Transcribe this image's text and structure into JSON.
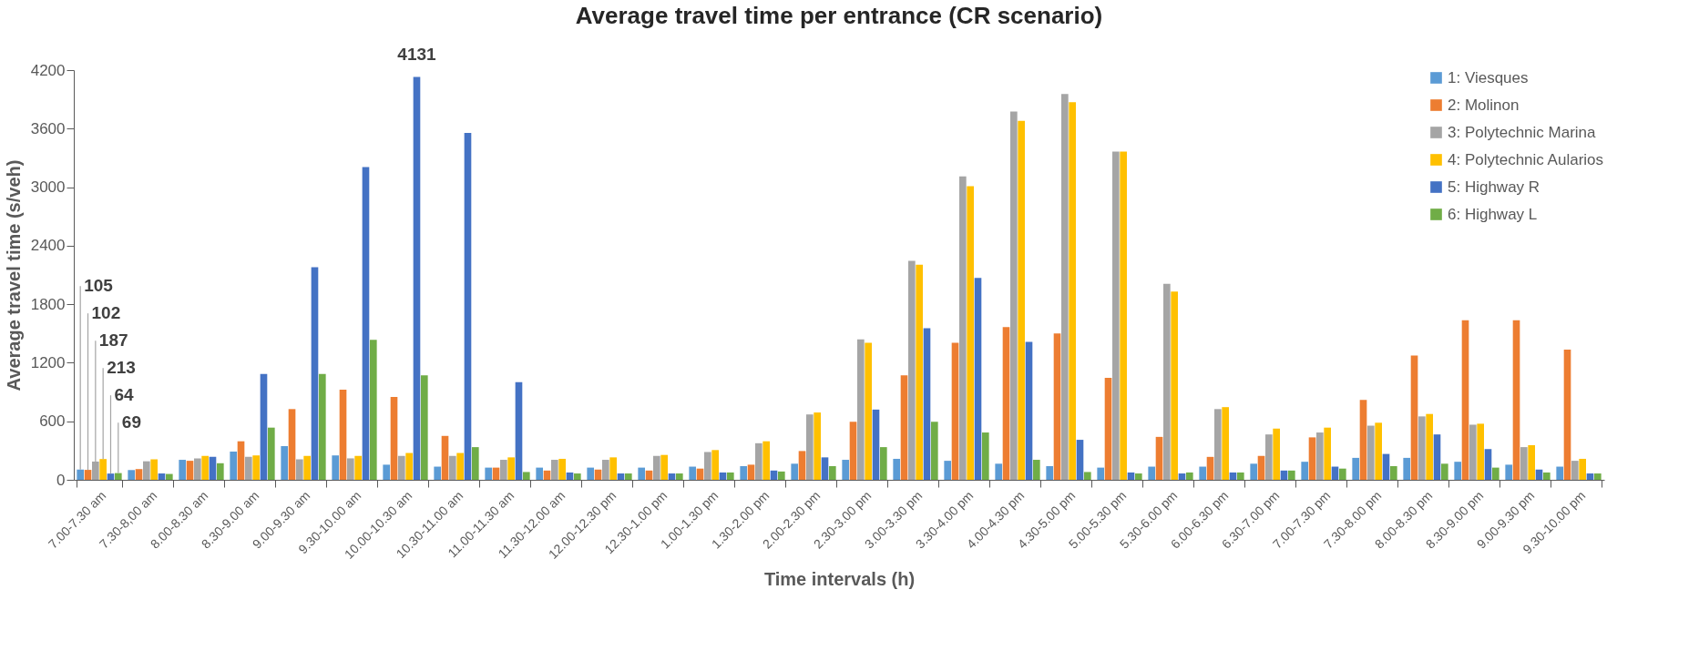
{
  "chart_data": {
    "type": "bar",
    "title": "Average travel time per entrance (CR scenario)",
    "xlabel": "Time intervals (h)",
    "ylabel": "Average travel time (s/veh)",
    "categories": [
      "7.00-7.30 am",
      "7.30-8,00 am",
      "8.00-8.30 am",
      "8.30-9.00 am",
      "9.00-9.30 am",
      "9.30-10.00 am",
      "10.00-10.30 am",
      "10.30-11.00 am",
      "11.00-11.30 am",
      "11.30-12.00 am",
      "12.00-12.30 pm",
      "12.30-1.00 pm",
      "1.00-1.30 pm",
      "1.30-2.00 pm",
      "2.00-2.30 pm",
      "2.30-3.00 pm",
      "3.00-3.30 pm",
      "3.30-4.00 pm",
      "4.00-4.30 pm",
      "4.30-5.00 pm",
      "5.00-5.30 pm",
      "5.30-6.00 pm",
      "6.00-6.30 pm",
      "6.30-7.00 pm",
      "7.00-7.30 pm",
      "7.30-8.00 pm",
      "8.00-8.30 pm",
      "8.30-9.00 pm",
      "9.00-9.30 pm",
      "9.30-10.00 pm"
    ],
    "ylim": [
      0,
      4200
    ],
    "yticks": [
      0,
      600,
      1200,
      1800,
      2400,
      3000,
      3600,
      4200
    ],
    "legend": "top right",
    "series": [
      {
        "name": "1: Viesques",
        "color": "#5b9bd5",
        "values": [
          105,
          100,
          205,
          290,
          345,
          250,
          155,
          135,
          125,
          125,
          125,
          125,
          135,
          140,
          165,
          205,
          215,
          195,
          165,
          140,
          125,
          135,
          135,
          165,
          185,
          225,
          225,
          185,
          155,
          135
        ],
        "value_labels": [
          "105",
          null,
          null,
          null,
          null,
          null,
          null,
          null,
          null,
          null,
          null,
          null,
          null,
          null,
          null,
          null,
          null,
          null,
          null,
          null,
          null,
          null,
          null,
          null,
          null,
          null,
          null,
          null,
          null,
          null
        ]
      },
      {
        "name": "2: Molinon",
        "color": "#ed7d31",
        "values": [
          102,
          110,
          195,
          395,
          725,
          925,
          850,
          450,
          125,
          95,
          105,
          95,
          115,
          155,
          295,
          595,
          1070,
          1405,
          1565,
          1500,
          1045,
          440,
          235,
          245,
          435,
          820,
          1275,
          1635,
          1635,
          1335
        ],
        "value_labels": [
          "102",
          null,
          null,
          null,
          null,
          null,
          null,
          null,
          null,
          null,
          null,
          null,
          null,
          null,
          null,
          null,
          null,
          null,
          null,
          null,
          null,
          null,
          null,
          null,
          null,
          null,
          null,
          null,
          null,
          null
        ]
      },
      {
        "name": "3: Polytechnic Marina",
        "color": "#a5a5a5",
        "values": [
          187,
          190,
          220,
          235,
          210,
          220,
          245,
          245,
          205,
          205,
          205,
          245,
          285,
          375,
          670,
          1440,
          2245,
          3110,
          3775,
          3955,
          3365,
          2010,
          725,
          465,
          485,
          555,
          650,
          565,
          335,
          195
        ],
        "value_labels": [
          "187",
          null,
          null,
          null,
          null,
          null,
          null,
          null,
          null,
          null,
          null,
          null,
          null,
          null,
          null,
          null,
          null,
          null,
          null,
          null,
          null,
          null,
          null,
          null,
          null,
          null,
          null,
          null,
          null,
          null
        ]
      },
      {
        "name": "4: Polytechnic Aularios",
        "color": "#ffc000",
        "values": [
          213,
          210,
          245,
          250,
          245,
          245,
          275,
          275,
          230,
          215,
          230,
          255,
          305,
          395,
          690,
          1405,
          2205,
          3010,
          3680,
          3870,
          3365,
          1930,
          745,
          525,
          535,
          585,
          675,
          575,
          355,
          215
        ],
        "value_labels": [
          "213",
          null,
          null,
          null,
          null,
          null,
          null,
          null,
          null,
          null,
          null,
          null,
          null,
          null,
          null,
          null,
          null,
          null,
          null,
          null,
          null,
          null,
          null,
          null,
          null,
          null,
          null,
          null,
          null,
          null
        ]
      },
      {
        "name": "5: Highway R",
        "color": "#4472c4",
        "values": [
          64,
          65,
          235,
          1085,
          2180,
          3205,
          4131,
          3555,
          1000,
          75,
          65,
          65,
          75,
          95,
          230,
          720,
          1555,
          2070,
          1415,
          410,
          75,
          65,
          75,
          95,
          135,
          265,
          465,
          315,
          105,
          65
        ],
        "value_labels": [
          "64",
          null,
          null,
          null,
          null,
          null,
          "4131",
          null,
          null,
          null,
          null,
          null,
          null,
          null,
          null,
          null,
          null,
          null,
          null,
          null,
          null,
          null,
          null,
          null,
          null,
          null,
          null,
          null,
          null,
          null
        ]
      },
      {
        "name": "6: Highway L",
        "color": "#70ad47",
        "values": [
          69,
          60,
          170,
          535,
          1085,
          1435,
          1070,
          335,
          80,
          65,
          65,
          65,
          75,
          85,
          140,
          335,
          595,
          485,
          205,
          80,
          65,
          75,
          75,
          95,
          115,
          140,
          165,
          125,
          75,
          65
        ],
        "value_labels": [
          "69",
          null,
          null,
          null,
          null,
          null,
          null,
          null,
          null,
          null,
          null,
          null,
          null,
          null,
          null,
          null,
          null,
          null,
          null,
          null,
          null,
          null,
          null,
          null,
          null,
          null,
          null,
          null,
          null,
          null
        ]
      }
    ]
  }
}
